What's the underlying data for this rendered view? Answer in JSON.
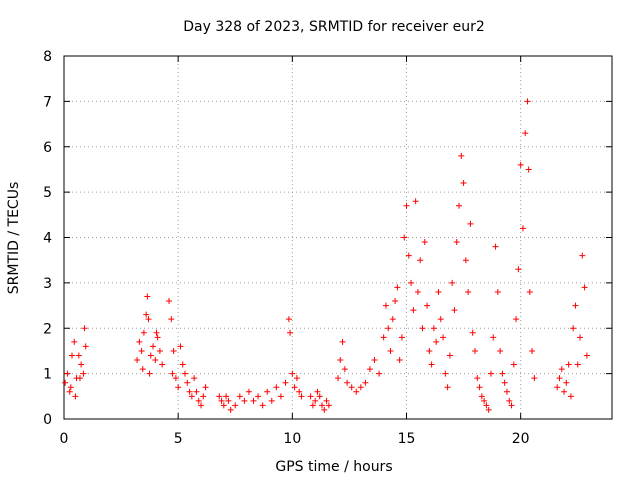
{
  "chart_data": {
    "type": "scatter",
    "title": "Day 328 of 2023, SRMTID for receiver eur2",
    "xlabel": "GPS time / hours",
    "ylabel": "SRMTID / TECUs",
    "xlim": [
      0,
      24
    ],
    "ylim": [
      0,
      8
    ],
    "xticks": [
      0,
      5,
      10,
      15,
      20
    ],
    "yticks": [
      0,
      1,
      2,
      3,
      4,
      5,
      6,
      7,
      8
    ],
    "grid": true,
    "marker": "+",
    "color": "#ff0000",
    "series": [
      {
        "name": "SRMTID",
        "points": [
          [
            0.05,
            0.8
          ],
          [
            0.15,
            1.0
          ],
          [
            0.25,
            0.6
          ],
          [
            0.35,
            1.4
          ],
          [
            0.45,
            1.7
          ],
          [
            0.55,
            0.9
          ],
          [
            0.65,
            1.4
          ],
          [
            0.75,
            1.2
          ],
          [
            0.85,
            1.0
          ],
          [
            0.9,
            2.0
          ],
          [
            0.95,
            1.6
          ],
          [
            0.5,
            0.5
          ],
          [
            0.3,
            0.7
          ],
          [
            0.7,
            0.9
          ],
          [
            3.2,
            1.3
          ],
          [
            3.3,
            1.7
          ],
          [
            3.4,
            1.5
          ],
          [
            3.5,
            1.9
          ],
          [
            3.6,
            2.3
          ],
          [
            3.65,
            2.7
          ],
          [
            3.7,
            2.2
          ],
          [
            3.8,
            1.4
          ],
          [
            3.9,
            1.6
          ],
          [
            4.0,
            1.3
          ],
          [
            4.1,
            1.8
          ],
          [
            4.2,
            1.5
          ],
          [
            4.3,
            1.2
          ],
          [
            3.45,
            1.1
          ],
          [
            3.75,
            1.0
          ],
          [
            4.05,
            1.9
          ],
          [
            4.6,
            2.6
          ],
          [
            4.7,
            2.2
          ],
          [
            4.75,
            1.0
          ],
          [
            4.8,
            1.5
          ],
          [
            4.9,
            0.9
          ],
          [
            5.0,
            0.7
          ],
          [
            5.1,
            1.6
          ],
          [
            5.2,
            1.2
          ],
          [
            5.3,
            1.0
          ],
          [
            5.4,
            0.8
          ],
          [
            5.5,
            0.6
          ],
          [
            5.6,
            0.5
          ],
          [
            5.7,
            0.9
          ],
          [
            5.8,
            0.6
          ],
          [
            5.9,
            0.4
          ],
          [
            6.0,
            0.3
          ],
          [
            6.1,
            0.5
          ],
          [
            6.2,
            0.7
          ],
          [
            6.8,
            0.5
          ],
          [
            6.9,
            0.4
          ],
          [
            7.0,
            0.3
          ],
          [
            7.1,
            0.5
          ],
          [
            7.2,
            0.4
          ],
          [
            7.3,
            0.2
          ],
          [
            7.5,
            0.3
          ],
          [
            7.7,
            0.5
          ],
          [
            7.9,
            0.4
          ],
          [
            8.1,
            0.6
          ],
          [
            8.3,
            0.4
          ],
          [
            8.5,
            0.5
          ],
          [
            8.7,
            0.3
          ],
          [
            8.9,
            0.6
          ],
          [
            9.1,
            0.4
          ],
          [
            9.3,
            0.7
          ],
          [
            9.5,
            0.5
          ],
          [
            9.7,
            0.8
          ],
          [
            9.85,
            2.2
          ],
          [
            9.9,
            1.9
          ],
          [
            10.0,
            1.0
          ],
          [
            10.1,
            0.7
          ],
          [
            10.2,
            0.9
          ],
          [
            10.3,
            0.6
          ],
          [
            10.4,
            0.5
          ],
          [
            10.8,
            0.5
          ],
          [
            10.9,
            0.3
          ],
          [
            11.0,
            0.4
          ],
          [
            11.1,
            0.6
          ],
          [
            11.2,
            0.5
          ],
          [
            11.3,
            0.3
          ],
          [
            11.4,
            0.2
          ],
          [
            11.5,
            0.4
          ],
          [
            11.6,
            0.3
          ],
          [
            12.0,
            0.9
          ],
          [
            12.1,
            1.3
          ],
          [
            12.2,
            1.7
          ],
          [
            12.3,
            1.1
          ],
          [
            12.4,
            0.8
          ],
          [
            12.6,
            0.7
          ],
          [
            12.8,
            0.6
          ],
          [
            13.0,
            0.7
          ],
          [
            13.2,
            0.8
          ],
          [
            13.4,
            1.1
          ],
          [
            13.6,
            1.3
          ],
          [
            13.8,
            1.0
          ],
          [
            14.0,
            1.8
          ],
          [
            14.1,
            2.5
          ],
          [
            14.2,
            2.0
          ],
          [
            14.3,
            1.5
          ],
          [
            14.4,
            2.2
          ],
          [
            14.5,
            2.6
          ],
          [
            14.6,
            2.9
          ],
          [
            14.7,
            1.3
          ],
          [
            14.8,
            1.8
          ],
          [
            14.9,
            4.0
          ],
          [
            15.0,
            4.7
          ],
          [
            15.1,
            3.6
          ],
          [
            15.2,
            3.0
          ],
          [
            15.3,
            2.4
          ],
          [
            15.4,
            4.8
          ],
          [
            15.5,
            2.8
          ],
          [
            15.6,
            3.5
          ],
          [
            15.7,
            2.0
          ],
          [
            15.8,
            3.9
          ],
          [
            15.9,
            2.5
          ],
          [
            16.0,
            1.5
          ],
          [
            16.1,
            1.2
          ],
          [
            16.2,
            2.0
          ],
          [
            16.3,
            1.7
          ],
          [
            16.4,
            2.8
          ],
          [
            16.5,
            2.2
          ],
          [
            16.6,
            1.8
          ],
          [
            16.7,
            1.0
          ],
          [
            16.8,
            0.7
          ],
          [
            16.9,
            1.4
          ],
          [
            17.0,
            3.0
          ],
          [
            17.1,
            2.4
          ],
          [
            17.2,
            3.9
          ],
          [
            17.3,
            4.7
          ],
          [
            17.4,
            5.8
          ],
          [
            17.5,
            5.2
          ],
          [
            17.6,
            3.5
          ],
          [
            17.7,
            2.8
          ],
          [
            17.8,
            4.3
          ],
          [
            17.9,
            1.9
          ],
          [
            18.0,
            1.5
          ],
          [
            18.1,
            0.9
          ],
          [
            18.2,
            0.7
          ],
          [
            18.3,
            0.5
          ],
          [
            18.4,
            0.4
          ],
          [
            18.5,
            0.3
          ],
          [
            18.6,
            0.2
          ],
          [
            18.7,
            1.0
          ],
          [
            18.8,
            1.8
          ],
          [
            18.9,
            3.8
          ],
          [
            19.0,
            2.8
          ],
          [
            19.1,
            1.5
          ],
          [
            19.2,
            1.0
          ],
          [
            19.3,
            0.8
          ],
          [
            19.4,
            0.6
          ],
          [
            19.5,
            0.4
          ],
          [
            19.6,
            0.3
          ],
          [
            19.7,
            1.2
          ],
          [
            19.8,
            2.2
          ],
          [
            19.9,
            3.3
          ],
          [
            20.0,
            5.6
          ],
          [
            20.1,
            4.2
          ],
          [
            20.2,
            6.3
          ],
          [
            20.3,
            7.0
          ],
          [
            20.35,
            5.5
          ],
          [
            20.4,
            2.8
          ],
          [
            20.5,
            1.5
          ],
          [
            20.6,
            0.9
          ],
          [
            21.6,
            0.7
          ],
          [
            21.7,
            0.9
          ],
          [
            21.8,
            1.1
          ],
          [
            21.9,
            0.6
          ],
          [
            22.0,
            0.8
          ],
          [
            22.1,
            1.2
          ],
          [
            22.2,
            0.5
          ],
          [
            22.3,
            2.0
          ],
          [
            22.4,
            2.5
          ],
          [
            22.5,
            1.2
          ],
          [
            22.6,
            1.8
          ],
          [
            22.7,
            3.6
          ],
          [
            22.8,
            2.9
          ],
          [
            22.9,
            1.4
          ]
        ]
      }
    ]
  }
}
